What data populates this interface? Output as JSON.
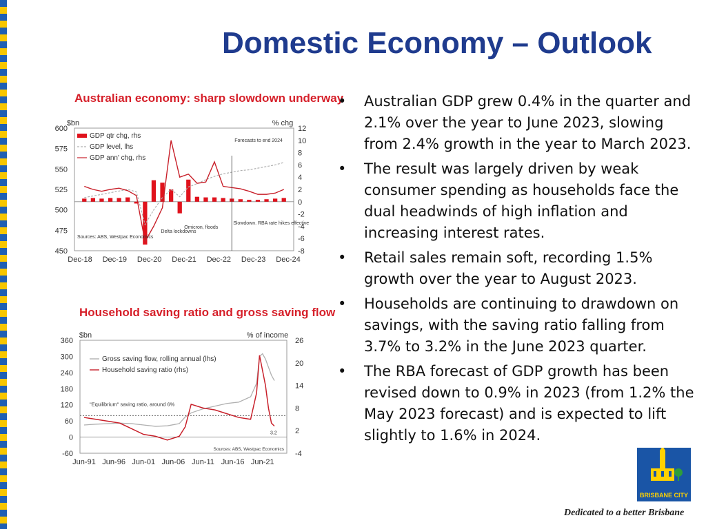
{
  "slide": {
    "title": "Domestic Economy – Outlook",
    "bullets": [
      "Australian GDP grew 0.4% in the quarter and 2.1% over the year to June 2023, slowing from 2.4% growth in the year to March 2023.",
      "The result was largely driven by weak consumer spending as households face the dual headwinds of high inflation and increasing interest rates.",
      "Retail sales remain soft, recording 1.5% growth over the year to August 2023.",
      "Households are continuing to drawdown on savings, with the saving ratio falling from 3.7% to 3.2% in the June 2023 quarter.",
      "The RBA forecast of GDP growth has been revised down to 0.9% in 2023 (from 1.2% the May 2023 forecast) and is expected to lift slightly to 1.6% in 2024."
    ],
    "bullet_symbol": "•",
    "logo_text": "BRISBANE CITY",
    "tagline": "Dedicated to a better Brisbane",
    "colors": {
      "title": "#1f3b8e",
      "chart_title": "#d6202a",
      "stripe_blue": "#1f5fb4",
      "stripe_yellow": "#f7c600",
      "series_red": "#c8202a",
      "series_grey": "#b0b0b0"
    }
  },
  "chart_data": [
    {
      "type": "bar",
      "title": "Australian economy: sharp slowdown underway",
      "ylabel_left": "$bn",
      "ylabel_right": "% chg",
      "ylim_left": [
        450,
        600
      ],
      "ylim_right": [
        -8,
        12
      ],
      "yticks_left": [
        "600",
        "575",
        "550",
        "525",
        "500",
        "475",
        "450"
      ],
      "yticks_right": [
        "12",
        "10",
        "8",
        "6",
        "4",
        "2",
        "0",
        "-2",
        "-4",
        "-6",
        "-8"
      ],
      "xticks": [
        "Dec-18",
        "Dec-19",
        "Dec-20",
        "Dec-21",
        "Dec-22",
        "Dec-23",
        "Dec-24"
      ],
      "legend": [
        "GDP qtr chg, rhs",
        "GDP level, lhs",
        "GDP ann' chg, rhs"
      ],
      "annotations": [
        "Forecasts to end 2024",
        "Delta lockdowns",
        "Omicron, floods",
        "Slowdown. RBA rate hikes effective",
        "Sources: ABS, Westpac Economics"
      ],
      "x_index": [
        0,
        1,
        2,
        3,
        4,
        5,
        6,
        7,
        8,
        9,
        10,
        11,
        12,
        13,
        14,
        15,
        16,
        17,
        18,
        19,
        20,
        21,
        22,
        23
      ],
      "series": [
        {
          "name": "GDP qtr chg, rhs",
          "kind": "bar",
          "values": [
            0.5,
            0.6,
            0.5,
            0.6,
            0.6,
            0.7,
            -0.3,
            -7.0,
            3.5,
            3.1,
            2.0,
            -1.9,
            3.6,
            0.8,
            0.7,
            0.7,
            0.6,
            0.5,
            0.4,
            0.3,
            0.3,
            0.4,
            0.5,
            0.6
          ]
        },
        {
          "name": "GDP level, lhs",
          "kind": "line",
          "values": [
            515,
            517,
            519,
            521,
            523,
            525,
            522,
            482,
            500,
            515,
            525,
            516,
            528,
            532,
            537,
            541,
            544,
            546,
            548,
            549,
            551,
            553,
            555,
            558
          ]
        },
        {
          "name": "GDP ann' chg, rhs",
          "kind": "line",
          "values": [
            2.5,
            2.0,
            1.7,
            2.0,
            2.2,
            1.8,
            1.0,
            -6.5,
            -4.0,
            -1.0,
            10.0,
            4.0,
            4.5,
            3.0,
            3.2,
            6.5,
            2.5,
            2.3,
            2.1,
            1.7,
            1.2,
            1.2,
            1.4,
            2.0
          ]
        }
      ]
    },
    {
      "type": "line",
      "title": "Household saving ratio and gross saving flow",
      "ylabel_left": "$bn",
      "ylabel_right": "% of income",
      "ylim_left": [
        -60,
        360
      ],
      "ylim_right": [
        -4,
        26
      ],
      "yticks_left": [
        "360",
        "300",
        "240",
        "180",
        "120",
        "60",
        "0",
        "-60"
      ],
      "yticks_right": [
        "26",
        "20",
        "14",
        "8",
        "2",
        "-4"
      ],
      "xticks": [
        "Jun-91",
        "Jun-96",
        "Jun-01",
        "Jun-06",
        "Jun-11",
        "Jun-16",
        "Jun-21"
      ],
      "legend": [
        "Gross saving flow, rolling annual (lhs)",
        "Household saving ratio (rhs)"
      ],
      "annotations": [
        "\"Equilibrium\" saving ratio, around 6%",
        "3.2",
        "Sources: ABS, Westpac Economics"
      ],
      "x_years": [
        1991,
        1993,
        1995,
        1997,
        1999,
        2001,
        2003,
        2005,
        2007,
        2008,
        2009,
        2011,
        2013,
        2015,
        2017,
        2019,
        2020,
        2020.5,
        2021,
        2021.5,
        2022,
        2022.5,
        2023
      ],
      "series": [
        {
          "name": "Gross saving flow, rolling annual (lhs)",
          "values": [
            45,
            48,
            50,
            52,
            50,
            45,
            40,
            42,
            50,
            75,
            90,
            105,
            115,
            125,
            130,
            150,
            200,
            300,
            310,
            290,
            260,
            230,
            210
          ]
        },
        {
          "name": "Household saving ratio (rhs)",
          "values": [
            5.5,
            5.0,
            4.5,
            4.0,
            2.5,
            1.0,
            0.5,
            -0.5,
            0.5,
            3.0,
            9.0,
            8.0,
            7.5,
            6.5,
            5.5,
            5.0,
            12.0,
            22.0,
            18.0,
            14.0,
            8.0,
            4.0,
            3.2
          ]
        }
      ],
      "reference_line": {
        "value": 6,
        "axis": "right"
      }
    }
  ]
}
